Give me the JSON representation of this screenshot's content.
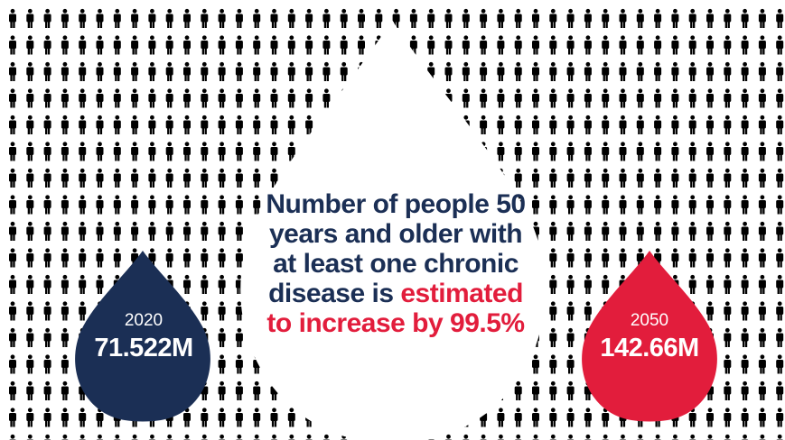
{
  "headline": {
    "line1": "Number of people 50",
    "line2": "years and older with",
    "line3": "at least one chronic",
    "line4_plain": "disease is ",
    "line4_accent": "estimated",
    "line5_accent": "to increase by 99.5%"
  },
  "stat_left": {
    "year": "2020",
    "value": "71.522M"
  },
  "stat_right": {
    "year": "2050",
    "value": "142.66M"
  },
  "colors": {
    "navy": "#1b2f55",
    "red": "#e21d3c",
    "icon_blue": "#3b79c2",
    "icon_purple": "#7b5ea7",
    "icon_pink": "#d9456b",
    "background": "#ffffff"
  },
  "icons": {
    "figure": "person-icon",
    "main_drop": "water-drop-shape",
    "stat_drop": "water-drop-shape"
  }
}
